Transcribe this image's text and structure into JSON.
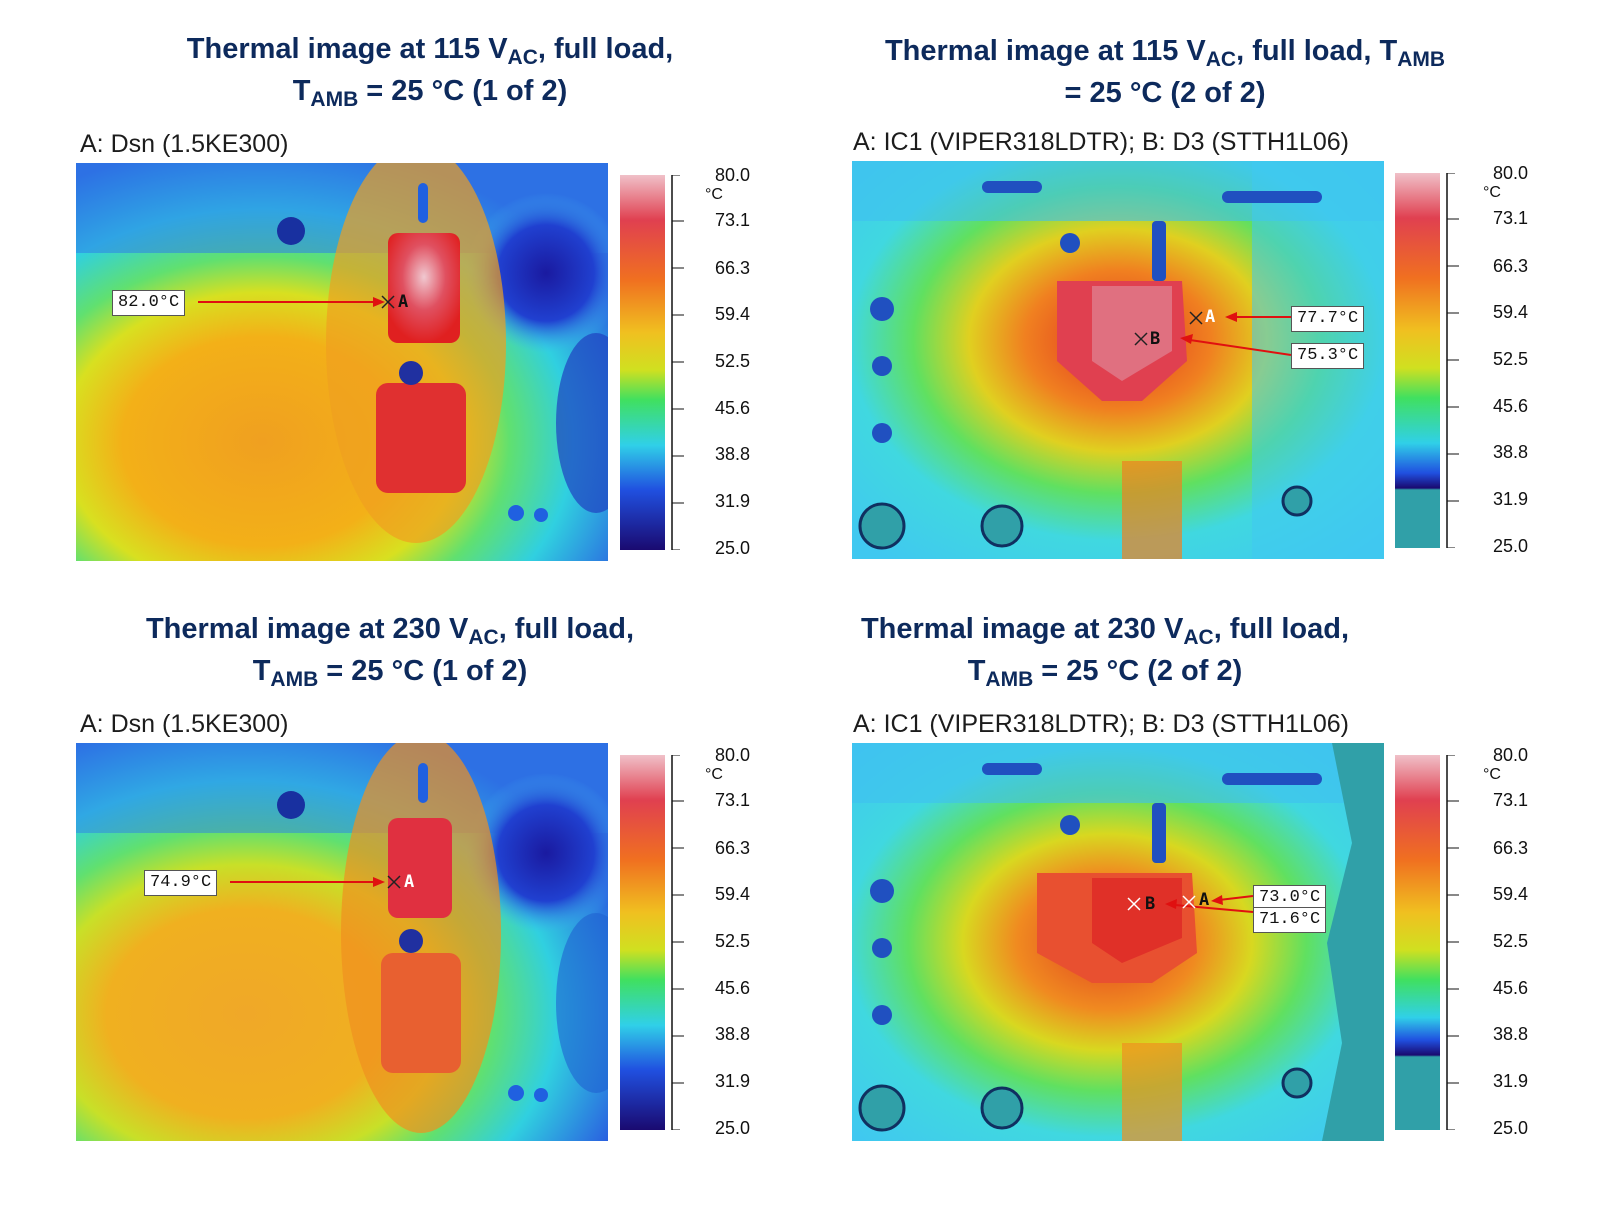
{
  "panels": [
    {
      "id": "tl",
      "title_prefix": "Thermal image at 115 V",
      "title_sub": "AC",
      "title_mid": ", full load,",
      "title_line2_prefix": "T",
      "title_line2_sub": "AMB",
      "title_line2_rest": " = 25 °C (1 of 2)",
      "subtitle": "A: Dsn (1.5KE300)",
      "callouts": [
        "82.0°C"
      ],
      "markers": [
        "A"
      ]
    },
    {
      "id": "tr",
      "title_prefix": "Thermal image at 115 V",
      "title_sub": "AC",
      "title_mid": ", full load, T",
      "title_mid_sub": "AMB",
      "title_line2_rest": "= 25 °C (2 of 2)",
      "subtitle": "A: IC1 (VIPER318LDTR); B: D3 (STTH1L06)",
      "callouts": [
        "77.7°C",
        "75.3°C"
      ],
      "markers": [
        "A",
        "B"
      ]
    },
    {
      "id": "bl",
      "title_prefix": "Thermal image at 230 V",
      "title_sub": "AC",
      "title_mid": ", full load,",
      "title_line2_prefix": "T",
      "title_line2_sub": "AMB",
      "title_line2_rest": " = 25 °C (1 of 2)",
      "subtitle": "A: Dsn (1.5KE300)",
      "callouts": [
        "74.9°C"
      ],
      "markers": [
        "A"
      ]
    },
    {
      "id": "br",
      "title_prefix": "Thermal image at 230 V",
      "title_sub": "AC",
      "title_mid": ", full load,",
      "title_line2_prefix": "T",
      "title_line2_sub": "AMB",
      "title_line2_rest": " = 25 °C (2 of 2)",
      "subtitle": "A: IC1 (VIPER318LDTR); B: D3 (STTH1L06)",
      "callouts": [
        "73.0°C",
        "71.6°C"
      ],
      "markers": [
        "A",
        "B"
      ]
    }
  ],
  "scale": {
    "unit": "°C",
    "labels": [
      "80.0",
      "73.1",
      "66.3",
      "59.4",
      "52.5",
      "45.6",
      "38.8",
      "31.9",
      "25.0"
    ]
  },
  "colors": {
    "title": "#0d2a5c",
    "callout_arrow": "#e01010",
    "hot": "#e8b0b8",
    "cold": "#1a1090"
  }
}
